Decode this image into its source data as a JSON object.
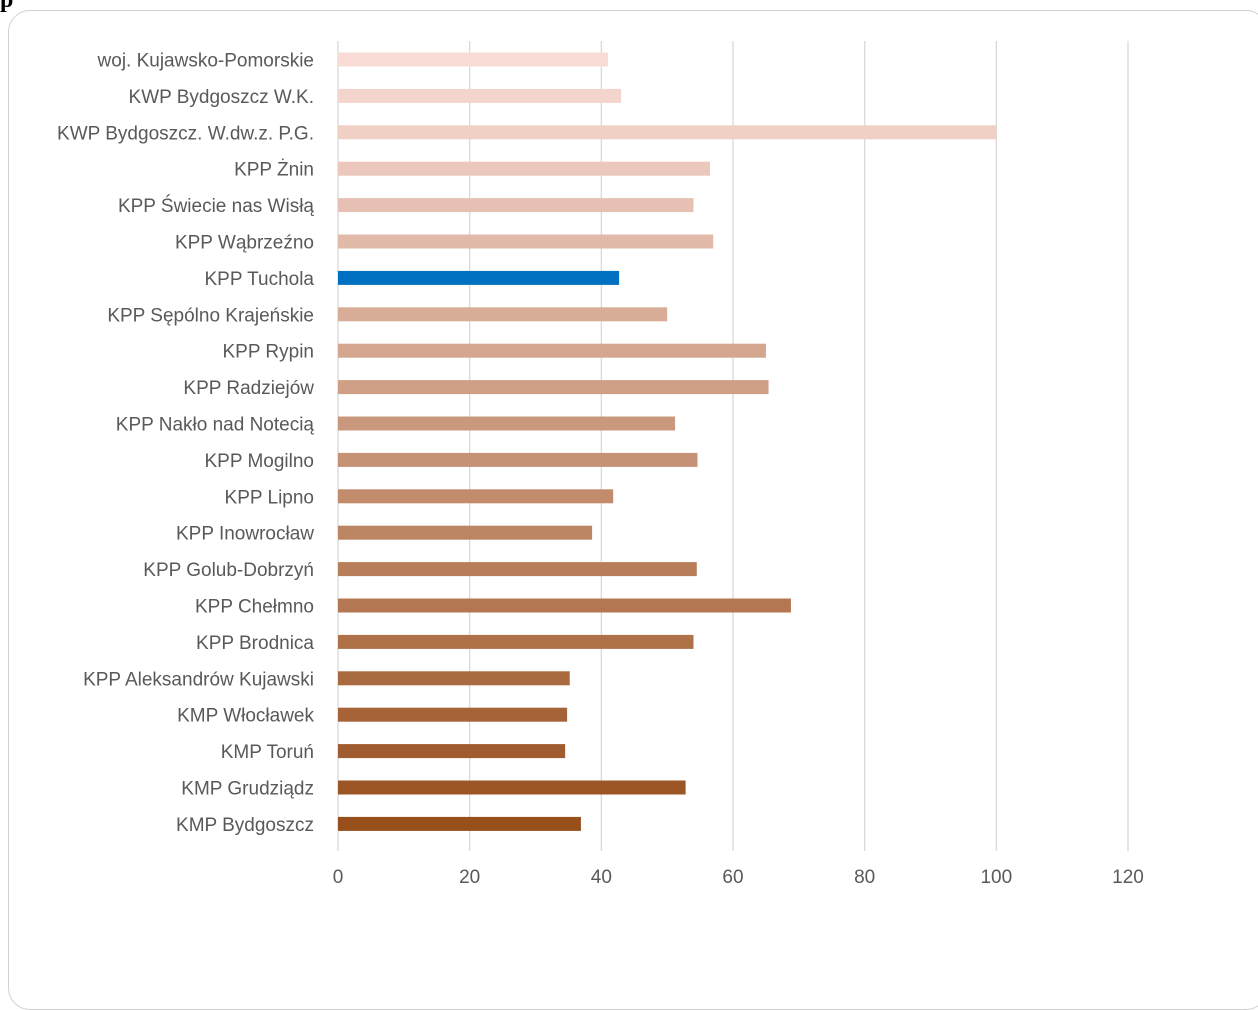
{
  "heading": "p",
  "colors": {
    "gridline": "#d9d9d9",
    "highlight": "#0070c0",
    "palette_top": "#f9dcd6",
    "palette_bottom": "#974f1c"
  },
  "chart_data": {
    "type": "bar",
    "orientation": "horizontal",
    "title": "",
    "xlabel": "",
    "ylabel": "",
    "xlim": [
      0,
      120
    ],
    "ticks": [
      0,
      20,
      40,
      60,
      80,
      100,
      120
    ],
    "grid": true,
    "legend": "none",
    "highlight_category": "KPP Tuchola",
    "categories": [
      "woj. Kujawsko-Pomorskie",
      "KWP Bydgoszcz W.K.",
      "KWP Bydgoszcz. W.dw.z. P.G.",
      "KPP Żnin",
      "KPP Świecie nas Wisłą",
      "KPP Wąbrzeźno",
      "KPP Tuchola",
      "KPP Sępólno Krajeńskie",
      "KPP Rypin",
      "KPP Radziejów",
      "KPP Nakło nad Notecią",
      "KPP Mogilno",
      "KPP Lipno",
      "KPP Inowrocław",
      "KPP Golub-Dobrzyń",
      "KPP Chełmno",
      "KPP Brodnica",
      "KPP Aleksandrów Kujawski",
      "KMP Włocławek",
      "KMP Toruń",
      "KMP Grudziądz",
      "KMP Bydgoszcz"
    ],
    "values": [
      41,
      43,
      100,
      56.5,
      54,
      57,
      42.7,
      50,
      65,
      65.4,
      51.2,
      54.6,
      41.8,
      38.6,
      54.5,
      68.8,
      54,
      35.2,
      34.8,
      34.5,
      52.8,
      36.9
    ]
  }
}
